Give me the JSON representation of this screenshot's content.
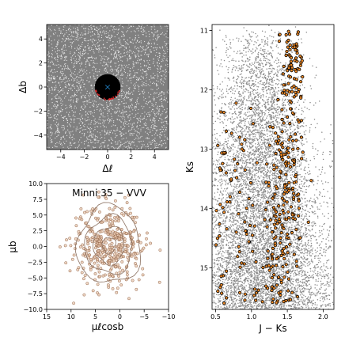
{
  "chart_data": [
    {
      "type": "scatter",
      "xlabel": "Δℓ",
      "ylabel": "Δb",
      "xlim": [
        -5.2,
        5.2
      ],
      "ylim": [
        -5.2,
        5.2
      ],
      "xticks": [
        -4,
        -2,
        0,
        2,
        4
      ],
      "yticks": [
        -4,
        -2,
        0,
        2,
        4
      ],
      "xticklabels": [
        "−4",
        "−2",
        "0",
        "2",
        "4"
      ],
      "yticklabels": [
        "−4",
        "−2",
        "0",
        "2",
        "4"
      ],
      "field_points": 2600,
      "circle": {
        "x": 0,
        "y": 0,
        "radius": 1.1
      },
      "center_marker": {
        "x": 0,
        "y": 0,
        "symbol": "×",
        "color": "#1f77b4"
      },
      "colors": {
        "field": "#808080",
        "members": "#000000",
        "highlight": "#d62728"
      }
    },
    {
      "type": "scatter",
      "title": "Minni 35 − VVV",
      "xlabel": "μℓcosb",
      "ylabel": "μb",
      "xlim": [
        15,
        -10
      ],
      "ylim": [
        -10,
        10
      ],
      "xticks": [
        15,
        10,
        5,
        0,
        -5,
        -10
      ],
      "yticks": [
        -10,
        -7.5,
        -5,
        -2.5,
        0,
        2.5,
        5,
        7.5,
        10
      ],
      "xticklabels": [
        "15",
        "10",
        "5",
        "0",
        "−5",
        "−10"
      ],
      "yticklabels": [
        "−10.0",
        "−7.5",
        "−5.0",
        "−2.5",
        "0.0",
        "2.5",
        "5.0",
        "7.5",
        "10.0"
      ],
      "cluster_center": {
        "x": 2.2,
        "y": 0.2
      },
      "cluster_sigma": {
        "x": 3.5,
        "y": 3.2
      },
      "member_points": 420,
      "contour_radii": [
        1.3,
        3.0,
        4.6,
        6.2
      ],
      "colors": {
        "points_fill": "#e9c9b2",
        "points_edge": "#8a5a3c",
        "contours": "#8a7060"
      }
    },
    {
      "type": "scatter",
      "xlabel": "J − Ks",
      "ylabel": "Ks",
      "xlim": [
        0.45,
        2.15
      ],
      "ylim": [
        15.7,
        10.9
      ],
      "xticks": [
        0.5,
        1.0,
        1.5,
        2.0
      ],
      "yticks": [
        11,
        12,
        13,
        14,
        15
      ],
      "xticklabels": [
        "0.5",
        "1.0",
        "1.5",
        "2.0"
      ],
      "yticklabels": [
        "11",
        "12",
        "13",
        "14",
        "15"
      ],
      "field_points": 9000,
      "member_points": 380,
      "sequence": {
        "color_at_Ks11": 1.6,
        "color_at_Ks15.5": 1.35,
        "width": 0.14
      },
      "colors": {
        "field": "#8c8c8c",
        "members_fill": "#f28c28",
        "members_edge": "#000000"
      }
    }
  ]
}
